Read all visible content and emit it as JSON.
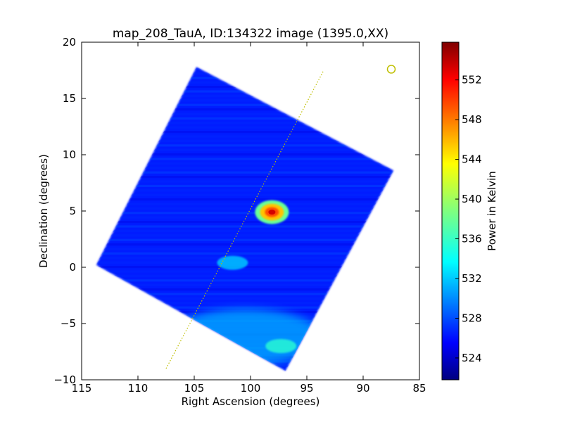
{
  "chart_data": {
    "type": "heatmap",
    "title": "map_208_TauA, ID:134322 image (1395.0,XX)",
    "xlabel": "Right Ascension (degrees)",
    "ylabel": "Declination (degrees)",
    "xlim": [
      115,
      85
    ],
    "ylim": [
      -10,
      20
    ],
    "x_ticks": [
      115,
      110,
      105,
      100,
      95,
      90,
      85
    ],
    "y_ticks": [
      -10,
      -5,
      0,
      5,
      10,
      15,
      20
    ],
    "colorbar": {
      "label": "Power in Kelvin",
      "range": [
        521.8,
        555.8
      ],
      "ticks": [
        524,
        528,
        532,
        536,
        540,
        544,
        548,
        552
      ],
      "colormap": "jet"
    },
    "map_outline": [
      [
        104.8,
        17.8
      ],
      [
        87.3,
        8.6
      ],
      [
        96.9,
        -9.2
      ],
      [
        113.7,
        0.2
      ]
    ],
    "background_level": 527,
    "sources": [
      {
        "ra": 98.1,
        "dec": 4.9,
        "peak": 553
      },
      {
        "ra": 97.3,
        "dec": -7.0,
        "peak": 536
      },
      {
        "ra": 101.6,
        "dec": 0.4,
        "peak": 533
      }
    ],
    "scan_line": {
      "start": [
        107.5,
        -9.0
      ],
      "end": [
        93.5,
        17.5
      ],
      "color": "#bfbf00"
    },
    "beam_marker": {
      "ra": 87.5,
      "dec": 17.6,
      "color": "#bfbf00"
    }
  }
}
